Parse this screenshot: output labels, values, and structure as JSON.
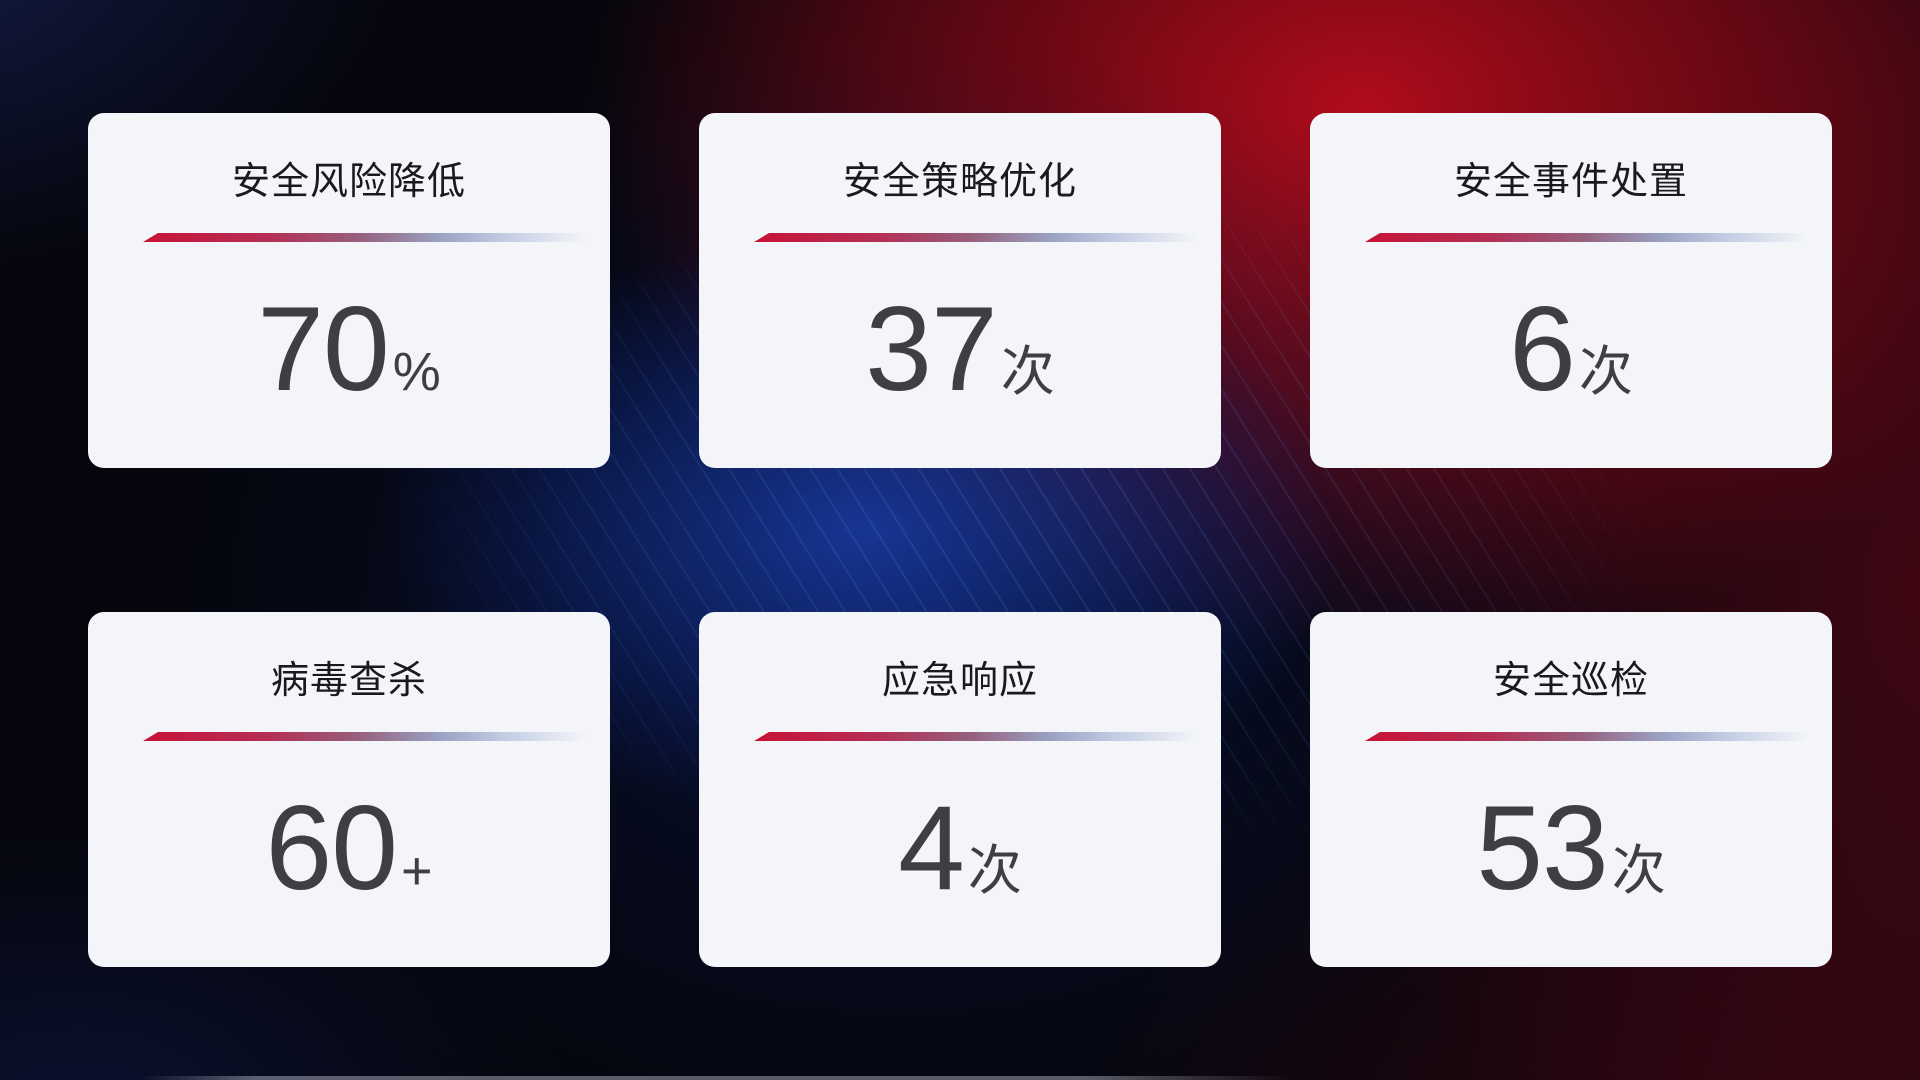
{
  "cards": [
    {
      "title": "安全风险降低",
      "value": "70",
      "unit": "%"
    },
    {
      "title": "安全策略优化",
      "value": "37",
      "unit": "次"
    },
    {
      "title": "安全事件处置",
      "value": "6",
      "unit": "次"
    },
    {
      "title": "病毒查杀",
      "value": "60",
      "unit": "+"
    },
    {
      "title": "应急响应",
      "value": "4",
      "unit": "次"
    },
    {
      "title": "安全巡检",
      "value": "53",
      "unit": "次"
    }
  ],
  "theme": {
    "card_background": "#f4f5f9",
    "title_color": "#1a1a1c",
    "value_color": "#3e3e44",
    "divider_red": "#c81237",
    "divider_mauve": "#96607e",
    "divider_blue_gray": "#c2cce2",
    "background_base": "#05060d",
    "background_red_glow": "#a50d16",
    "background_blue_glow": "#12307e"
  }
}
